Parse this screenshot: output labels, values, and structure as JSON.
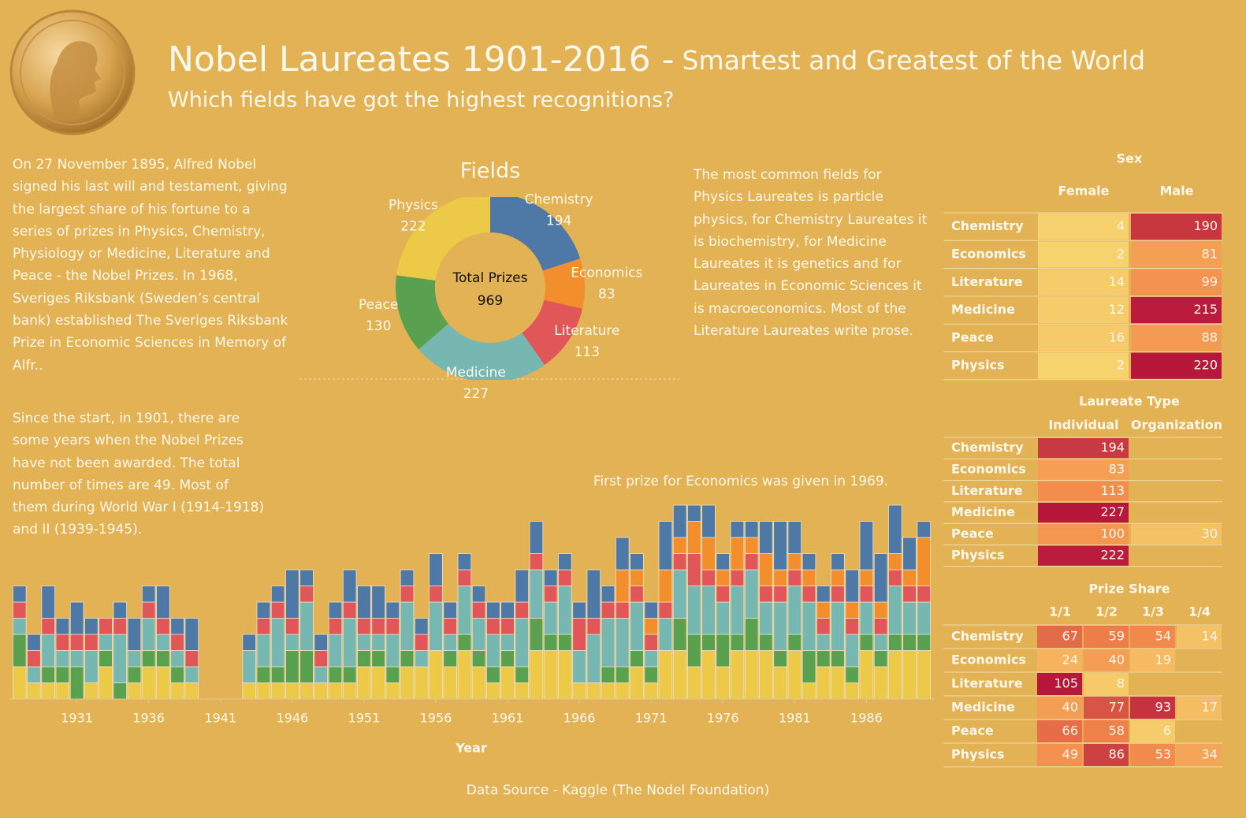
{
  "header": {
    "title": "Nobel Laureates 1901-2016 -",
    "title_suffix": "Smartest and Greatest of the World",
    "subtitle": "Which fields have got the highest recognitions?"
  },
  "texts": {
    "intro": "On 27 November 1895, Alfred Nobel signed his last will and testament, giving the largest share of his fortune to a series of prizes in Physics, Chemistry, Physiology or Medicine, Literature and Peace - the Nobel Prizes. In 1968, Sveriges Riksbank (Sweden’s central bank) established The Sveriges Riksbank Prize in Economic Sciences in Memory of Alfr..",
    "gaps": "Since the start, in 1901, there are some years when the Nobel Prizes have not been awarded. The total number of times are 49. Most of them during World War I (1914-1918) and II (1939-1945).",
    "fields_note": "The most common fields for Physics Laureates is particle physics, for Chemistry Laureates it is biochemistry, for Medicine Laureates it is genetics and for Laureates in Economic Sciences it is macroeconomics. Most of the Literature Laureates write prose."
  },
  "footer": "Data Source - Kaggle (The Nodel Foundation)",
  "chart_data": [
    {
      "type": "donut",
      "title": "Fields",
      "categories": [
        "Chemistry",
        "Economics",
        "Literature",
        "Medicine",
        "Peace",
        "Physics"
      ],
      "values": [
        194,
        83,
        113,
        227,
        130,
        222
      ],
      "colors": [
        "#4e79a7",
        "#f28e2b",
        "#e15759",
        "#76b7b2",
        "#59a14f",
        "#edc948"
      ],
      "center_label": "Total Prizes",
      "total": 969
    },
    {
      "type": "stacked_bar",
      "xlabel": "Year",
      "annotation": "First prize for Economics was given in 1969.",
      "x": [
        1927,
        1928,
        1929,
        1930,
        1931,
        1932,
        1933,
        1934,
        1935,
        1936,
        1937,
        1938,
        1939,
        1940,
        1941,
        1942,
        1943,
        1944,
        1945,
        1946,
        1947,
        1948,
        1949,
        1950,
        1951,
        1952,
        1953,
        1954,
        1955,
        1956,
        1957,
        1958,
        1959,
        1960,
        1961,
        1962,
        1963,
        1964,
        1965,
        1966,
        1967,
        1968,
        1969,
        1970,
        1971,
        1972,
        1973,
        1974,
        1975,
        1976,
        1977,
        1978,
        1979,
        1980,
        1981,
        1982,
        1983,
        1984,
        1985,
        1986,
        1987,
        1988,
        1989,
        1990
      ],
      "xlim": [
        1926.3,
        1990.7
      ],
      "xticks": [
        1931,
        1936,
        1941,
        1946,
        1951,
        1956,
        1961,
        1966,
        1971,
        1976,
        1981,
        1986
      ],
      "ylim": [
        0,
        14
      ],
      "series": [
        {
          "name": "Physics",
          "color": "#edc948",
          "values": [
            2,
            1,
            1,
            1,
            0,
            1,
            2,
            0,
            1,
            2,
            2,
            1,
            1,
            0,
            0,
            0,
            1,
            1,
            1,
            1,
            1,
            1,
            1,
            1,
            2,
            2,
            1,
            2,
            2,
            3,
            2,
            3,
            2,
            1,
            2,
            1,
            3,
            3,
            3,
            1,
            1,
            1,
            1,
            2,
            1,
            3,
            3,
            2,
            3,
            2,
            3,
            3,
            3,
            2,
            3,
            1,
            2,
            2,
            1,
            3,
            2,
            3,
            3,
            3
          ]
        },
        {
          "name": "Peace",
          "color": "#59a14f",
          "values": [
            2,
            0,
            1,
            1,
            2,
            0,
            1,
            1,
            1,
            1,
            1,
            1,
            0,
            0,
            0,
            0,
            0,
            1,
            1,
            2,
            2,
            0,
            1,
            1,
            1,
            1,
            1,
            1,
            0,
            0,
            1,
            1,
            1,
            1,
            1,
            1,
            2,
            1,
            1,
            0,
            0,
            1,
            1,
            1,
            1,
            0,
            2,
            2,
            1,
            2,
            1,
            2,
            1,
            1,
            1,
            2,
            1,
            1,
            1,
            1,
            1,
            1,
            1,
            1
          ]
        },
        {
          "name": "Medicine",
          "color": "#76b7b2",
          "values": [
            1,
            1,
            2,
            1,
            1,
            2,
            1,
            3,
            1,
            2,
            1,
            1,
            1,
            0,
            0,
            0,
            2,
            2,
            3,
            1,
            3,
            1,
            2,
            3,
            1,
            1,
            2,
            3,
            1,
            3,
            1,
            3,
            2,
            2,
            1,
            3,
            3,
            2,
            3,
            2,
            3,
            3,
            3,
            3,
            1,
            2,
            3,
            3,
            3,
            2,
            3,
            3,
            2,
            3,
            3,
            3,
            1,
            3,
            2,
            2,
            1,
            3,
            2,
            2
          ]
        },
        {
          "name": "Literature",
          "color": "#e15759",
          "values": [
            1,
            1,
            1,
            1,
            1,
            1,
            1,
            1,
            0,
            1,
            1,
            1,
            1,
            0,
            0,
            0,
            0,
            1,
            1,
            1,
            1,
            1,
            1,
            1,
            1,
            1,
            1,
            1,
            1,
            1,
            1,
            1,
            1,
            1,
            1,
            1,
            1,
            1,
            1,
            2,
            1,
            1,
            1,
            1,
            1,
            1,
            1,
            2,
            1,
            1,
            1,
            1,
            1,
            1,
            1,
            1,
            1,
            1,
            1,
            1,
            1,
            1,
            1,
            1
          ]
        },
        {
          "name": "Economics",
          "color": "#f28e2b",
          "values": [
            0,
            0,
            0,
            0,
            0,
            0,
            0,
            0,
            0,
            0,
            0,
            0,
            0,
            0,
            0,
            0,
            0,
            0,
            0,
            0,
            0,
            0,
            0,
            0,
            0,
            0,
            0,
            0,
            0,
            0,
            0,
            0,
            0,
            0,
            0,
            0,
            0,
            0,
            0,
            0,
            0,
            0,
            2,
            1,
            1,
            2,
            1,
            2,
            2,
            1,
            2,
            1,
            2,
            1,
            1,
            1,
            1,
            1,
            1,
            1,
            1,
            1,
            1,
            3
          ]
        },
        {
          "name": "Chemistry",
          "color": "#4e79a7",
          "values": [
            1,
            1,
            2,
            1,
            2,
            1,
            0,
            1,
            2,
            1,
            2,
            1,
            2,
            0,
            0,
            0,
            1,
            1,
            1,
            3,
            1,
            1,
            1,
            2,
            2,
            2,
            1,
            1,
            1,
            2,
            1,
            1,
            1,
            1,
            1,
            2,
            2,
            1,
            1,
            1,
            3,
            1,
            2,
            1,
            1,
            3,
            2,
            1,
            2,
            1,
            1,
            1,
            2,
            3,
            2,
            1,
            1,
            1,
            2,
            3,
            3,
            3,
            2,
            1
          ]
        }
      ]
    }
  ],
  "tables": [
    {
      "title": "Sex",
      "columns": [
        "Female",
        "Male"
      ],
      "rows": [
        "Chemistry",
        "Economics",
        "Literature",
        "Medicine",
        "Peace",
        "Physics"
      ],
      "values": [
        [
          4,
          190
        ],
        [
          2,
          81
        ],
        [
          14,
          99
        ],
        [
          12,
          215
        ],
        [
          16,
          88
        ],
        [
          2,
          220
        ]
      ]
    },
    {
      "title": "Laureate Type",
      "columns": [
        "Individual",
        "Organization"
      ],
      "rows": [
        "Chemistry",
        "Economics",
        "Literature",
        "Medicine",
        "Peace",
        "Physics"
      ],
      "values": [
        [
          194,
          null
        ],
        [
          83,
          null
        ],
        [
          113,
          null
        ],
        [
          227,
          null
        ],
        [
          100,
          30
        ],
        [
          222,
          null
        ]
      ]
    },
    {
      "title": "Prize Share",
      "columns": [
        "1/1",
        "1/2",
        "1/3",
        "1/4"
      ],
      "rows": [
        "Chemistry",
        "Economics",
        "Literature",
        "Medicine",
        "Peace",
        "Physics"
      ],
      "values": [
        [
          67,
          59,
          54,
          14
        ],
        [
          24,
          40,
          19,
          null
        ],
        [
          105,
          8,
          null,
          null
        ],
        [
          40,
          77,
          93,
          17
        ],
        [
          66,
          58,
          6,
          null
        ],
        [
          49,
          86,
          53,
          34
        ]
      ]
    }
  ],
  "color_scale": [
    "#f6d46e",
    "#f48c4c",
    "#b8173c"
  ]
}
